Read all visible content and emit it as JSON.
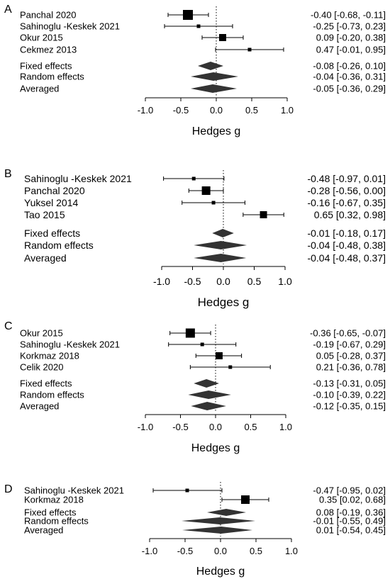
{
  "chart_data": [
    {
      "type": "forest",
      "panel_label": "A",
      "xlabel": "Hedges g",
      "xlim": [
        -1.0,
        1.0
      ],
      "xticks": [
        "-1.0",
        "-0.5",
        "0.0",
        "0.5",
        "1.0"
      ],
      "studies": [
        {
          "name": "Panchal 2020",
          "g": -0.4,
          "lo": -0.68,
          "hi": -0.11,
          "weight": "large",
          "ci_text": "-0.40 [-0.68, -0.11]"
        },
        {
          "name": "Sahinoglu -Keskek 2021",
          "g": -0.25,
          "lo": -0.73,
          "hi": 0.23,
          "weight": "small",
          "ci_text": "-0.25 [-0.73, 0.23]"
        },
        {
          "name": "Okur 2015",
          "g": 0.09,
          "lo": -0.2,
          "hi": 0.38,
          "weight": "medium",
          "ci_text": "0.09 [-0.20, 0.38]"
        },
        {
          "name": "Cekmez 2013",
          "g": 0.47,
          "lo": -0.01,
          "hi": 0.95,
          "weight": "small",
          "ci_text": "0.47 [-0.01, 0.95]"
        }
      ],
      "summaries": [
        {
          "name": "Fixed effects",
          "g": -0.08,
          "lo": -0.26,
          "hi": 0.1,
          "ci_text": "-0.08 [-0.26, 0.10]"
        },
        {
          "name": "Random effects",
          "g": -0.04,
          "lo": -0.36,
          "hi": 0.31,
          "ci_text": "-0.04 [-0.36, 0.31]"
        },
        {
          "name": "Averaged",
          "g": -0.05,
          "lo": -0.36,
          "hi": 0.29,
          "ci_text": "-0.05 [-0.36, 0.29]"
        }
      ]
    },
    {
      "type": "forest",
      "panel_label": "B",
      "xlabel": "Hedges g",
      "xlim": [
        -1.0,
        1.0
      ],
      "xticks": [
        "-1.0",
        "-0.5",
        "0.0",
        "0.5",
        "1.0"
      ],
      "studies": [
        {
          "name": "Sahinoglu -Keskek 2021",
          "g": -0.48,
          "lo": -0.97,
          "hi": 0.01,
          "weight": "small",
          "ci_text": "-0.48 [-0.97, 0.01]"
        },
        {
          "name": "Panchal 2020",
          "g": -0.28,
          "lo": -0.56,
          "hi": 0.0,
          "weight": "large",
          "ci_text": "-0.28 [-0.56, 0.00]"
        },
        {
          "name": "Yuksel 2014",
          "g": -0.16,
          "lo": -0.67,
          "hi": 0.35,
          "weight": "small",
          "ci_text": "-0.16 [-0.67, 0.35]"
        },
        {
          "name": "Tao 2015",
          "g": 0.65,
          "lo": 0.32,
          "hi": 0.98,
          "weight": "medium",
          "ci_text": "0.65 [0.32, 0.98]"
        }
      ],
      "summaries": [
        {
          "name": "Fixed effects",
          "g": -0.01,
          "lo": -0.18,
          "hi": 0.17,
          "ci_text": "-0.01 [-0.18, 0.17]"
        },
        {
          "name": "Random effects",
          "g": -0.04,
          "lo": -0.48,
          "hi": 0.38,
          "ci_text": "-0.04 [-0.48, 0.38]"
        },
        {
          "name": "Averaged",
          "g": -0.04,
          "lo": -0.48,
          "hi": 0.37,
          "ci_text": "-0.04 [-0.48, 0.37]"
        }
      ]
    },
    {
      "type": "forest",
      "panel_label": "C",
      "xlabel": "Hedges g",
      "xlim": [
        -1.0,
        1.0
      ],
      "xticks": [
        "-1.0",
        "-0.5",
        "0.0",
        "0.5",
        "1.0"
      ],
      "studies": [
        {
          "name": "Okur 2015",
          "g": -0.36,
          "lo": -0.65,
          "hi": -0.07,
          "weight": "large",
          "ci_text": "-0.36 [-0.65, -0.07]"
        },
        {
          "name": "Sahinoglu -Keskek 2021",
          "g": -0.19,
          "lo": -0.67,
          "hi": 0.29,
          "weight": "small",
          "ci_text": "-0.19 [-0.67, 0.29]"
        },
        {
          "name": "Korkmaz 2018",
          "g": 0.05,
          "lo": -0.28,
          "hi": 0.37,
          "weight": "medium",
          "ci_text": "0.05 [-0.28, 0.37]"
        },
        {
          "name": "Celik 2020",
          "g": 0.21,
          "lo": -0.36,
          "hi": 0.78,
          "weight": "small",
          "ci_text": "0.21 [-0.36, 0.78]"
        }
      ],
      "summaries": [
        {
          "name": "Fixed effects",
          "g": -0.13,
          "lo": -0.31,
          "hi": 0.05,
          "ci_text": "-0.13 [-0.31, 0.05]"
        },
        {
          "name": "Random effects",
          "g": -0.1,
          "lo": -0.39,
          "hi": 0.22,
          "ci_text": "-0.10 [-0.39, 0.22]"
        },
        {
          "name": "Averaged",
          "g": -0.12,
          "lo": -0.35,
          "hi": 0.15,
          "ci_text": "-0.12 [-0.35, 0.15]"
        }
      ]
    },
    {
      "type": "forest",
      "panel_label": "D",
      "xlabel": "Hedges g",
      "xlim": [
        -1.0,
        1.0
      ],
      "xticks": [
        "-1.0",
        "-0.5",
        "0.0",
        "0.5",
        "1.0"
      ],
      "studies": [
        {
          "name": "Sahinoglu -Keskek 2021",
          "g": -0.47,
          "lo": -0.95,
          "hi": 0.02,
          "weight": "small",
          "ci_text": "-0.47 [-0.95, 0.02]"
        },
        {
          "name": "Korkmaz 2018",
          "g": 0.35,
          "lo": 0.02,
          "hi": 0.68,
          "weight": "large",
          "ci_text": "0.35 [0.02, 0.68]"
        }
      ],
      "summaries": [
        {
          "name": "Fixed effects",
          "g": 0.08,
          "lo": -0.19,
          "hi": 0.36,
          "ci_text": "0.08 [-0.19, 0.36]"
        },
        {
          "name": "Random effects",
          "g": -0.01,
          "lo": -0.55,
          "hi": 0.49,
          "ci_text": "-0.01 [-0.55, 0.49]"
        },
        {
          "name": "Averaged",
          "g": 0.01,
          "lo": -0.54,
          "hi": 0.45,
          "ci_text": "0.01 [-0.54, 0.45]"
        }
      ]
    }
  ]
}
